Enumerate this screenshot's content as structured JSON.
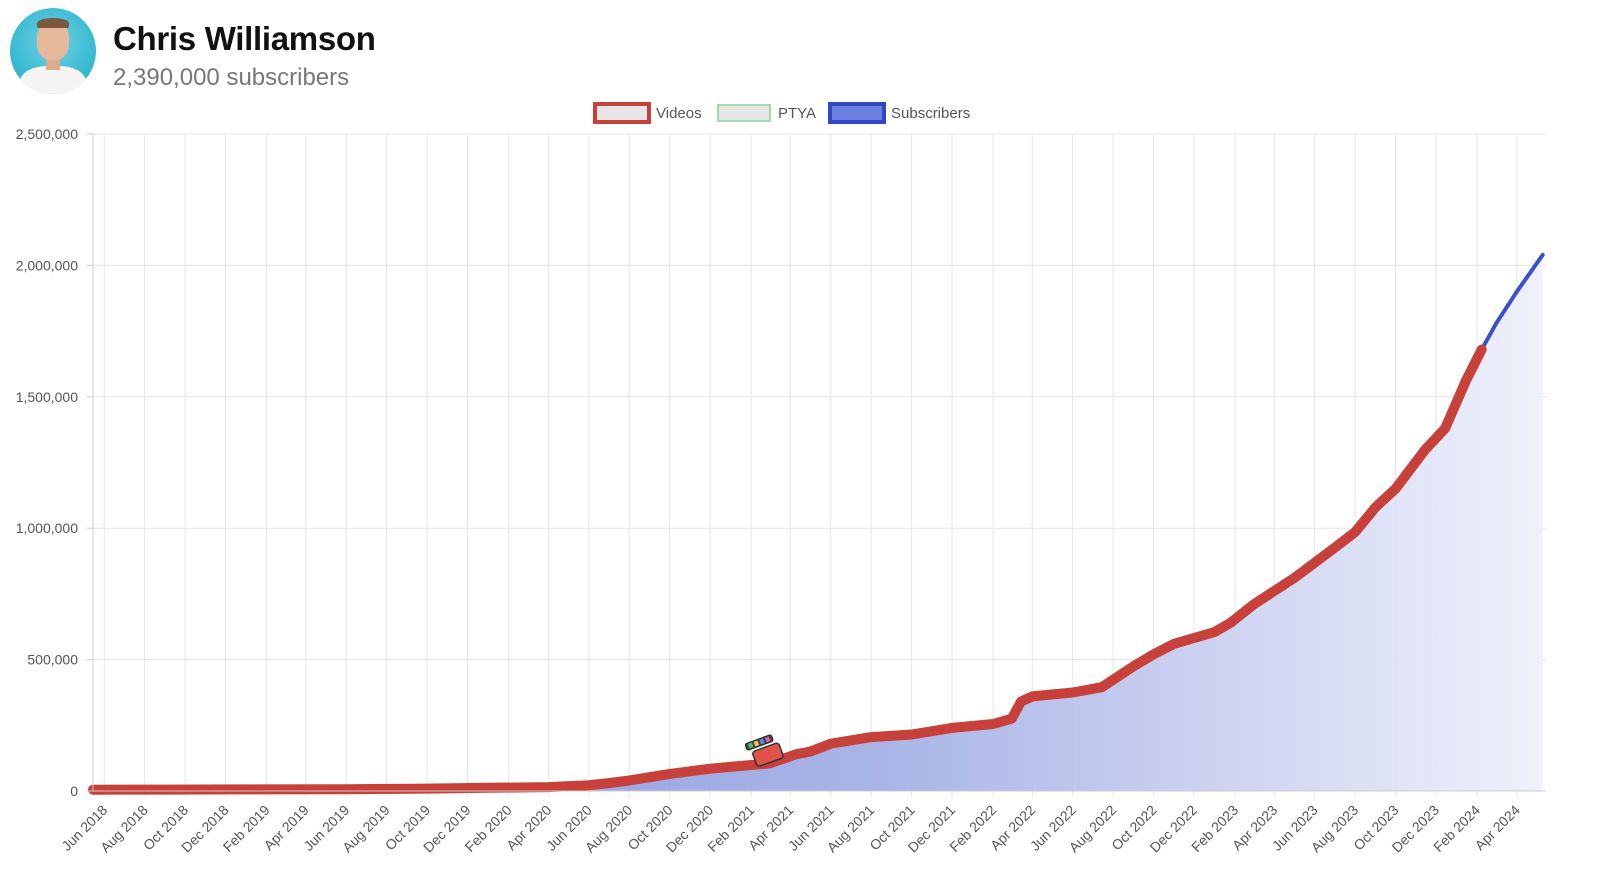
{
  "channel": {
    "name": "Chris Williamson",
    "subscribers_text": "2,390,000 subscribers",
    "avatar_icon": "person-avatar-icon"
  },
  "colors": {
    "videos": "#c8403a",
    "ptya": "#9fdca6",
    "subscribers": "#3a50c8",
    "fill_top": "#8090dc",
    "grid": "#e5e5e5"
  },
  "chart_data": {
    "type": "area",
    "title": "",
    "xlabel": "",
    "ylabel": "",
    "ylim": [
      0,
      2500000
    ],
    "yticks": [
      0,
      500000,
      1000000,
      1500000,
      2000000,
      2500000
    ],
    "ytick_labels": [
      "0",
      "500,000",
      "1,000,000",
      "1,500,000",
      "2,000,000",
      "2,500,000"
    ],
    "xlim": [
      "2018-05-15",
      "2024-05-15"
    ],
    "xtick_labels": [
      "Jun 2018",
      "Aug 2018",
      "Oct 2018",
      "Dec 2018",
      "Feb 2019",
      "Apr 2019",
      "Jun 2019",
      "Aug 2019",
      "Oct 2019",
      "Dec 2019",
      "Feb 2020",
      "Apr 2020",
      "Jun 2020",
      "Aug 2020",
      "Oct 2020",
      "Dec 2020",
      "Feb 2021",
      "Apr 2021",
      "Jun 2021",
      "Aug 2021",
      "Oct 2021",
      "Dec 2021",
      "Feb 2022",
      "Apr 2022",
      "Jun 2022",
      "Aug 2022",
      "Oct 2022",
      "Dec 2022",
      "Feb 2023",
      "Apr 2023",
      "Jun 2023",
      "Aug 2023",
      "Oct 2023",
      "Dec 2023",
      "Feb 2024",
      "Apr 2024"
    ],
    "xticks": [
      "2018-06-01",
      "2018-08-01",
      "2018-10-01",
      "2018-12-01",
      "2019-02-01",
      "2019-04-01",
      "2019-06-01",
      "2019-08-01",
      "2019-10-01",
      "2019-12-01",
      "2020-02-01",
      "2020-04-01",
      "2020-06-01",
      "2020-08-01",
      "2020-10-01",
      "2020-12-01",
      "2021-02-01",
      "2021-04-01",
      "2021-06-01",
      "2021-08-01",
      "2021-10-01",
      "2021-12-01",
      "2022-02-01",
      "2022-04-01",
      "2022-06-01",
      "2022-08-01",
      "2022-10-01",
      "2022-12-01",
      "2023-02-01",
      "2023-04-01",
      "2023-06-01",
      "2023-08-01",
      "2023-10-01",
      "2023-12-01",
      "2024-02-01",
      "2024-04-01"
    ],
    "grid": true,
    "legend": "top-center",
    "legend_entries": [
      "Videos",
      "PTYA",
      "Subscribers"
    ],
    "series": [
      {
        "name": "Subscribers",
        "x": [
          "2018-05-15",
          "2018-09-01",
          "2019-01-01",
          "2019-06-01",
          "2019-10-01",
          "2020-01-01",
          "2020-04-01",
          "2020-06-01",
          "2020-07-01",
          "2020-08-01",
          "2020-10-01",
          "2020-12-01",
          "2021-01-15",
          "2021-03-01",
          "2021-04-10",
          "2021-05-01",
          "2021-06-01",
          "2021-08-01",
          "2021-10-01",
          "2021-12-01",
          "2022-02-01",
          "2022-03-01",
          "2022-03-15",
          "2022-04-01",
          "2022-06-01",
          "2022-07-15",
          "2022-09-01",
          "2022-10-01",
          "2022-11-01",
          "2023-01-01",
          "2023-01-25",
          "2023-03-01",
          "2023-05-01",
          "2023-07-01",
          "2023-08-01",
          "2023-09-01",
          "2023-10-01",
          "2023-11-15",
          "2023-12-15",
          "2024-01-15",
          "2024-02-08",
          "2024-03-01",
          "2024-04-01",
          "2024-05-10"
        ],
        "values": [
          5000,
          5500,
          6000,
          7000,
          9000,
          12000,
          15000,
          22000,
          30000,
          40000,
          65000,
          85000,
          95000,
          105000,
          140000,
          150000,
          180000,
          205000,
          215000,
          240000,
          255000,
          275000,
          340000,
          360000,
          375000,
          395000,
          475000,
          520000,
          560000,
          605000,
          640000,
          710000,
          810000,
          925000,
          985000,
          1080000,
          1150000,
          1300000,
          1380000,
          1560000,
          1680000,
          1780000,
          1900000,
          2040000
        ]
      }
    ],
    "videos_marks_end": "2024-02-08"
  }
}
